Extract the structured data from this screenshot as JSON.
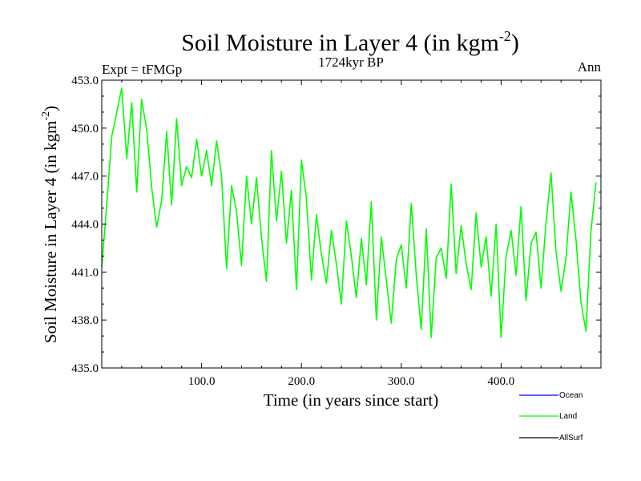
{
  "chart_data": {
    "type": "line",
    "title": "Soil Moisture in Layer 4 (in kgm",
    "title_superscript": "-2",
    "title_suffix": ")",
    "subtitle_left": "Expt = tFMGp",
    "subtitle_center": "1724kyr BP",
    "subtitle_right": "Ann",
    "xlabel": "Time (in years since start)",
    "ylabel": "Soil Moisture in Layer 4 (in kgm",
    "ylabel_superscript": "-2",
    "ylabel_suffix": ")",
    "xlim": [
      0,
      500
    ],
    "ylim": [
      435,
      453
    ],
    "x_ticks": [
      100,
      200,
      300,
      400
    ],
    "x_tick_labels": [
      "100.0",
      "200.0",
      "300.0",
      "400.0"
    ],
    "y_ticks": [
      435,
      438,
      441,
      444,
      447,
      450,
      453
    ],
    "y_tick_labels": [
      "435.0",
      "438.0",
      "441.0",
      "444.0",
      "447.0",
      "450.0",
      "453.0"
    ],
    "grid": false,
    "legend_position": "bottom-right",
    "legend": [
      {
        "name": "Ocean",
        "color": "#0000ff"
      },
      {
        "name": "Land",
        "color": "#00ff00"
      },
      {
        "name": "AllSurf",
        "color": "#000000"
      }
    ],
    "series": [
      {
        "name": "Land",
        "color": "#00ff00",
        "x": [
          0,
          5,
          10,
          15,
          20,
          25,
          30,
          35,
          40,
          45,
          50,
          55,
          60,
          65,
          70,
          75,
          80,
          85,
          90,
          95,
          100,
          105,
          110,
          115,
          120,
          125,
          130,
          135,
          140,
          145,
          150,
          155,
          160,
          165,
          170,
          175,
          180,
          185,
          190,
          195,
          200,
          205,
          210,
          215,
          220,
          225,
          230,
          235,
          240,
          245,
          250,
          255,
          260,
          265,
          270,
          275,
          280,
          285,
          290,
          295,
          300,
          305,
          310,
          315,
          320,
          325,
          330,
          335,
          340,
          345,
          350,
          355,
          360,
          365,
          370,
          375,
          380,
          385,
          390,
          395,
          400,
          405,
          410,
          415,
          420,
          425,
          430,
          435,
          440,
          445,
          450,
          455,
          460,
          465,
          470,
          475,
          480,
          485,
          490,
          495
        ],
        "values": [
          441.3,
          445.2,
          449.5,
          451.0,
          452.5,
          448.1,
          451.6,
          446.0,
          451.8,
          449.9,
          446.3,
          443.8,
          445.5,
          449.8,
          445.2,
          450.6,
          446.4,
          447.6,
          446.9,
          449.3,
          447.0,
          448.6,
          446.4,
          449.2,
          447.0,
          441.2,
          446.4,
          444.8,
          441.4,
          447.0,
          444.0,
          446.9,
          443.1,
          440.4,
          448.6,
          444.2,
          447.3,
          442.8,
          446.1,
          439.9,
          448.0,
          445.6,
          440.5,
          444.6,
          442.1,
          440.3,
          443.6,
          441.5,
          439.0,
          444.2,
          442.0,
          439.4,
          443.1,
          440.2,
          445.4,
          438.0,
          443.2,
          440.5,
          437.8,
          441.8,
          442.7,
          440.0,
          445.3,
          440.8,
          437.4,
          443.7,
          436.9,
          441.9,
          442.5,
          440.6,
          446.5,
          440.9,
          443.9,
          441.5,
          439.9,
          444.7,
          441.3,
          443.2,
          439.5,
          444.0,
          436.9,
          442.0,
          443.6,
          440.8,
          445.1,
          439.2,
          442.8,
          443.5,
          440.0,
          444.1,
          447.2,
          442.3,
          439.8,
          441.9,
          446.0,
          443.0,
          439.1,
          437.3,
          443.5,
          446.6
        ]
      }
    ]
  }
}
